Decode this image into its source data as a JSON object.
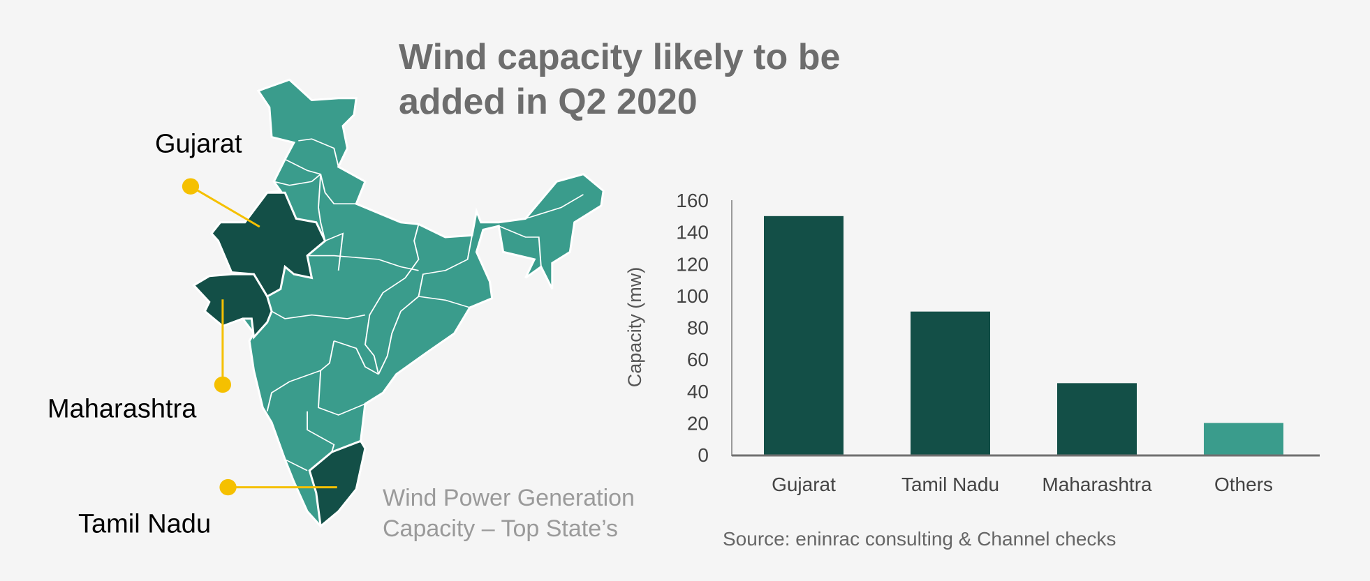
{
  "title": [
    "Wind capacity likely to be",
    "added in Q2 2020"
  ],
  "map": {
    "labels": {
      "gujarat": "Gujarat",
      "maharashtra": "Maharashtra",
      "tamil_nadu": "Tamil Nadu"
    },
    "subtitle": [
      "Wind Power Generation",
      "Capacity – Top State’s"
    ],
    "colors": {
      "highlight": "#134f47",
      "base": "#3a9c8c",
      "callout": "#f5c000",
      "border": "#ffffff"
    }
  },
  "chart_data": {
    "type": "bar",
    "categories": [
      "Gujarat",
      "Tamil Nadu",
      "Maharashtra",
      "Others"
    ],
    "values": [
      150,
      90,
      45,
      20
    ],
    "colors": [
      "#134f47",
      "#134f47",
      "#134f47",
      "#3a9c8c"
    ],
    "title": "",
    "xlabel": "",
    "ylabel": "Capacity (mw)",
    "ylim": [
      0,
      160
    ],
    "yticks": [
      0,
      20,
      40,
      60,
      80,
      100,
      120,
      140,
      160
    ],
    "grid": false
  },
  "source": "Source: eninrac consulting & Channel checks"
}
